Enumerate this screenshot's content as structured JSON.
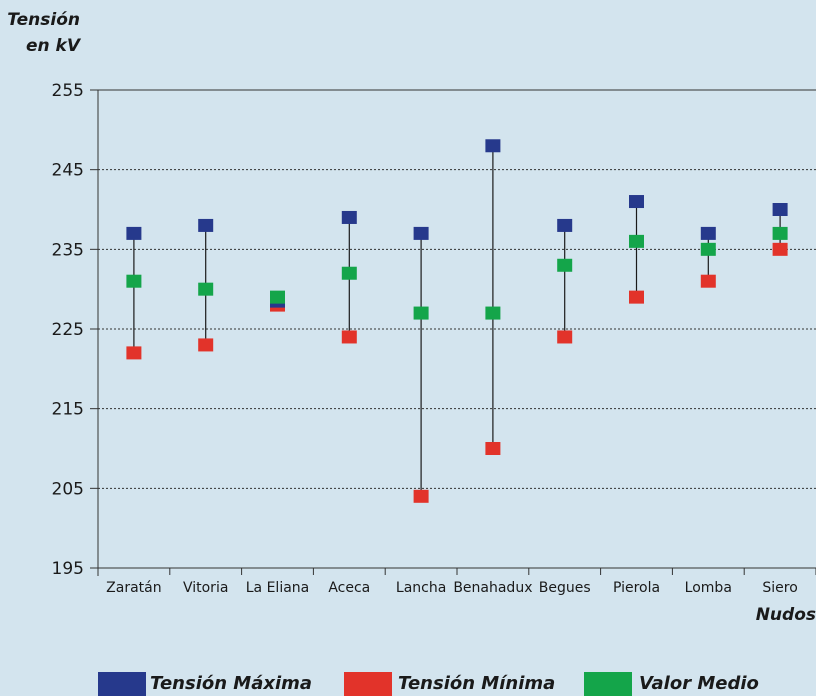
{
  "chart_data": {
    "type": "range-dot",
    "ylabel_lines": [
      "Tensión",
      "en kV"
    ],
    "xlabel": "Nudos",
    "categories": [
      "Zaratán",
      "Vitoria",
      "La Eliana",
      "Aceca",
      "Lancha",
      "Benahadux",
      "Begues",
      "Pierola",
      "Lomba",
      "Siero"
    ],
    "ylim": [
      195,
      255
    ],
    "yticks": [
      "195",
      "205",
      "215",
      "225",
      "235",
      "245",
      "255"
    ],
    "grid": "horizontal dotted",
    "series": [
      {
        "name": "Tensión Máxima",
        "color": "#26398c",
        "values": [
          237,
          238,
          228.5,
          239,
          237,
          248,
          238,
          241,
          237,
          240
        ]
      },
      {
        "name": "Tensión Mínima",
        "color": "#e2332a",
        "values": [
          222,
          223,
          228,
          224,
          204,
          210,
          224,
          229,
          231,
          235
        ]
      },
      {
        "name": "Valor Medio",
        "color": "#14a54a",
        "values": [
          231,
          230,
          229,
          232,
          227,
          227,
          233,
          236,
          235,
          237
        ]
      }
    ]
  }
}
